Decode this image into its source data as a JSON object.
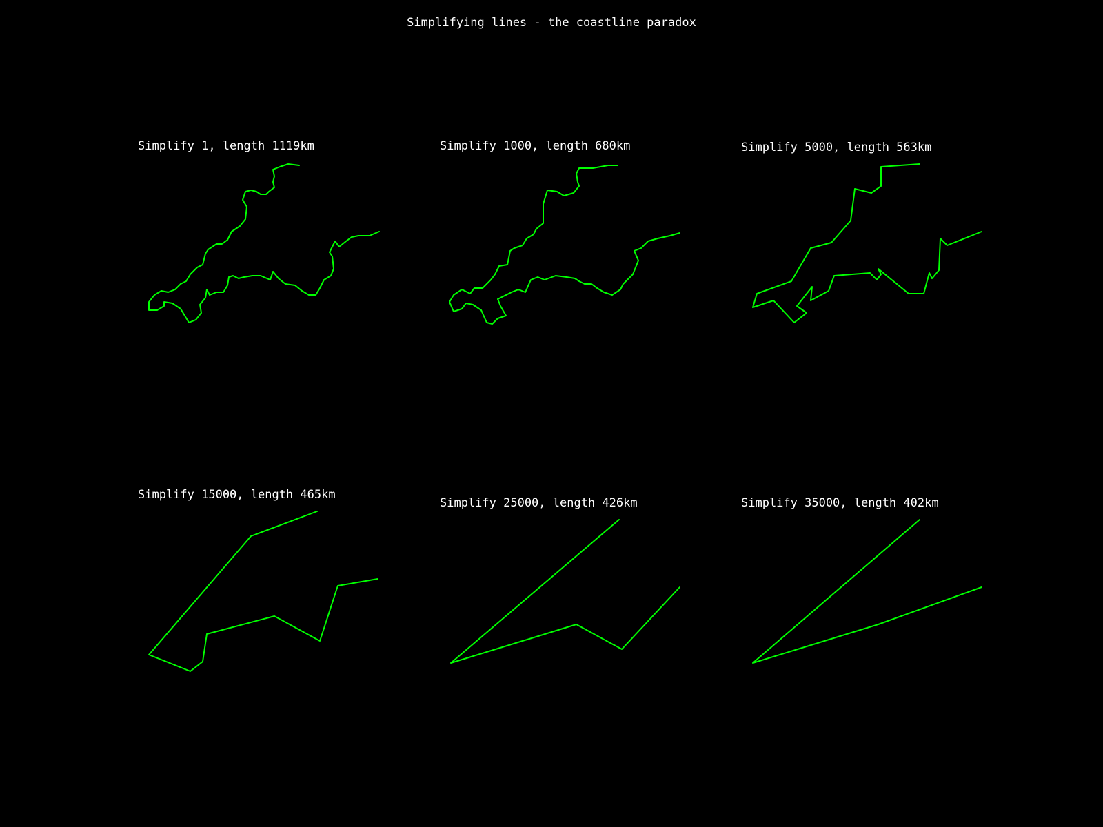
{
  "figure": {
    "title": "Simplifying lines - the coastline paradox",
    "background": "#000000",
    "text_color": "#ffffff",
    "line_color": "#00ff00"
  },
  "chart_data": [
    {
      "type": "line",
      "title": "Simplify 1, length 1119km",
      "simplify": 1,
      "length_km": 1119,
      "series": [
        {
          "values": [
            [
              434,
              240
            ],
            [
              418,
              238
            ],
            [
              406,
              242
            ],
            [
              396,
              246
            ],
            [
              398,
              256
            ],
            [
              396,
              264
            ],
            [
              398,
              272
            ],
            [
              390,
              278
            ],
            [
              386,
              282
            ],
            [
              378,
              282
            ],
            [
              372,
              278
            ],
            [
              364,
              276
            ],
            [
              356,
              278
            ],
            [
              352,
              290
            ],
            [
              358,
              300
            ],
            [
              356,
              318
            ],
            [
              348,
              328
            ],
            [
              336,
              336
            ],
            [
              330,
              348
            ],
            [
              322,
              354
            ],
            [
              314,
              354
            ],
            [
              302,
              362
            ],
            [
              298,
              368
            ],
            [
              294,
              384
            ],
            [
              286,
              388
            ],
            [
              276,
              398
            ],
            [
              270,
              408
            ],
            [
              262,
              412
            ],
            [
              254,
              420
            ],
            [
              244,
              424
            ],
            [
              234,
              422
            ],
            [
              224,
              428
            ],
            [
              216,
              438
            ],
            [
              216,
              450
            ],
            [
              228,
              450
            ],
            [
              238,
              444
            ],
            [
              238,
              438
            ],
            [
              250,
              440
            ],
            [
              262,
              448
            ],
            [
              268,
              458
            ],
            [
              274,
              468
            ],
            [
              284,
              464
            ],
            [
              292,
              454
            ],
            [
              290,
              442
            ],
            [
              298,
              432
            ],
            [
              300,
              420
            ],
            [
              304,
              428
            ],
            [
              314,
              424
            ],
            [
              324,
              424
            ],
            [
              330,
              414
            ],
            [
              332,
              402
            ],
            [
              338,
              400
            ],
            [
              346,
              404
            ],
            [
              354,
              402
            ],
            [
              366,
              400
            ],
            [
              378,
              400
            ],
            [
              392,
              406
            ],
            [
              396,
              394
            ],
            [
              404,
              404
            ],
            [
              414,
              412
            ],
            [
              428,
              414
            ],
            [
              438,
              422
            ],
            [
              448,
              428
            ],
            [
              458,
              428
            ],
            [
              464,
              418
            ],
            [
              470,
              406
            ],
            [
              480,
              400
            ],
            [
              484,
              390
            ],
            [
              482,
              372
            ],
            [
              478,
              366
            ],
            [
              486,
              350
            ],
            [
              492,
              358
            ],
            [
              502,
              350
            ],
            [
              510,
              344
            ],
            [
              520,
              342
            ],
            [
              536,
              342
            ],
            [
              550,
              336
            ]
          ]
        }
      ]
    },
    {
      "type": "line",
      "title": "Simplify 1000, length 680km",
      "simplify": 1000,
      "length_km": 680,
      "series": [
        {
          "values": [
            [
              896,
              240
            ],
            [
              882,
              240
            ],
            [
              860,
              244
            ],
            [
              840,
              244
            ],
            [
              836,
              252
            ],
            [
              838,
              264
            ],
            [
              840,
              270
            ],
            [
              832,
              280
            ],
            [
              818,
              284
            ],
            [
              808,
              278
            ],
            [
              794,
              276
            ],
            [
              788,
              296
            ],
            [
              788,
              324
            ],
            [
              778,
              332
            ],
            [
              774,
              340
            ],
            [
              764,
              346
            ],
            [
              758,
              356
            ],
            [
              746,
              360
            ],
            [
              740,
              364
            ],
            [
              736,
              384
            ],
            [
              724,
              386
            ],
            [
              718,
              398
            ],
            [
              712,
              406
            ],
            [
              700,
              418
            ],
            [
              688,
              418
            ],
            [
              682,
              426
            ],
            [
              670,
              420
            ],
            [
              658,
              428
            ],
            [
              652,
              438
            ],
            [
              658,
              452
            ],
            [
              670,
              448
            ],
            [
              676,
              440
            ],
            [
              686,
              442
            ],
            [
              698,
              450
            ],
            [
              706,
              468
            ],
            [
              714,
              470
            ],
            [
              722,
              462
            ],
            [
              734,
              458
            ],
            [
              726,
              444
            ],
            [
              722,
              434
            ],
            [
              730,
              430
            ],
            [
              742,
              424
            ],
            [
              752,
              420
            ],
            [
              762,
              424
            ],
            [
              770,
              406
            ],
            [
              780,
              402
            ],
            [
              790,
              406
            ],
            [
              806,
              400
            ],
            [
              822,
              402
            ],
            [
              834,
              404
            ],
            [
              840,
              408
            ],
            [
              848,
              412
            ],
            [
              858,
              412
            ],
            [
              866,
              418
            ],
            [
              876,
              424
            ],
            [
              888,
              428
            ],
            [
              900,
              420
            ],
            [
              904,
              412
            ],
            [
              910,
              406
            ],
            [
              918,
              398
            ],
            [
              926,
              378
            ],
            [
              920,
              364
            ],
            [
              930,
              360
            ],
            [
              940,
              350
            ],
            [
              954,
              346
            ],
            [
              972,
              342
            ],
            [
              986,
              338
            ]
          ]
        }
      ]
    },
    {
      "type": "line",
      "title": "Simplify 5000, length 563km",
      "simplify": 5000,
      "length_km": 563,
      "series": [
        {
          "values": [
            [
              1334,
              238
            ],
            [
              1278,
              242
            ],
            [
              1278,
              270
            ],
            [
              1264,
              280
            ],
            [
              1240,
              274
            ],
            [
              1234,
              320
            ],
            [
              1206,
              352
            ],
            [
              1176,
              360
            ],
            [
              1148,
              408
            ],
            [
              1098,
              426
            ],
            [
              1092,
              446
            ],
            [
              1122,
              436
            ],
            [
              1152,
              468
            ],
            [
              1170,
              454
            ],
            [
              1156,
              444
            ],
            [
              1178,
              416
            ],
            [
              1176,
              436
            ],
            [
              1202,
              422
            ],
            [
              1210,
              400
            ],
            [
              1262,
              396
            ],
            [
              1272,
              406
            ],
            [
              1278,
              398
            ],
            [
              1274,
              390
            ],
            [
              1318,
              426
            ],
            [
              1340,
              426
            ],
            [
              1348,
              396
            ],
            [
              1352,
              404
            ],
            [
              1362,
              392
            ],
            [
              1364,
              346
            ],
            [
              1374,
              356
            ],
            [
              1424,
              336
            ]
          ]
        }
      ]
    },
    {
      "type": "line",
      "title": "Simplify 15000, length 465km",
      "simplify": 15000,
      "length_km": 465,
      "series": [
        {
          "values": [
            [
              460,
              742
            ],
            [
              364,
              778
            ],
            [
              216,
              950
            ],
            [
              276,
              974
            ],
            [
              294,
              960
            ],
            [
              300,
              920
            ],
            [
              398,
              894
            ],
            [
              464,
              930
            ],
            [
              490,
              850
            ],
            [
              548,
              840
            ]
          ]
        }
      ]
    },
    {
      "type": "line",
      "title": "Simplify 25000, length 426km",
      "simplify": 25000,
      "length_km": 426,
      "series": [
        {
          "values": [
            [
              898,
              754
            ],
            [
              654,
              962
            ],
            [
              836,
              906
            ],
            [
              902,
              942
            ],
            [
              986,
              852
            ]
          ]
        }
      ]
    },
    {
      "type": "line",
      "title": "Simplify 35000, length 402km",
      "simplify": 35000,
      "length_km": 402,
      "series": [
        {
          "values": [
            [
              1334,
              754
            ],
            [
              1092,
              962
            ],
            [
              1274,
              906
            ],
            [
              1424,
              852
            ]
          ]
        }
      ]
    }
  ]
}
